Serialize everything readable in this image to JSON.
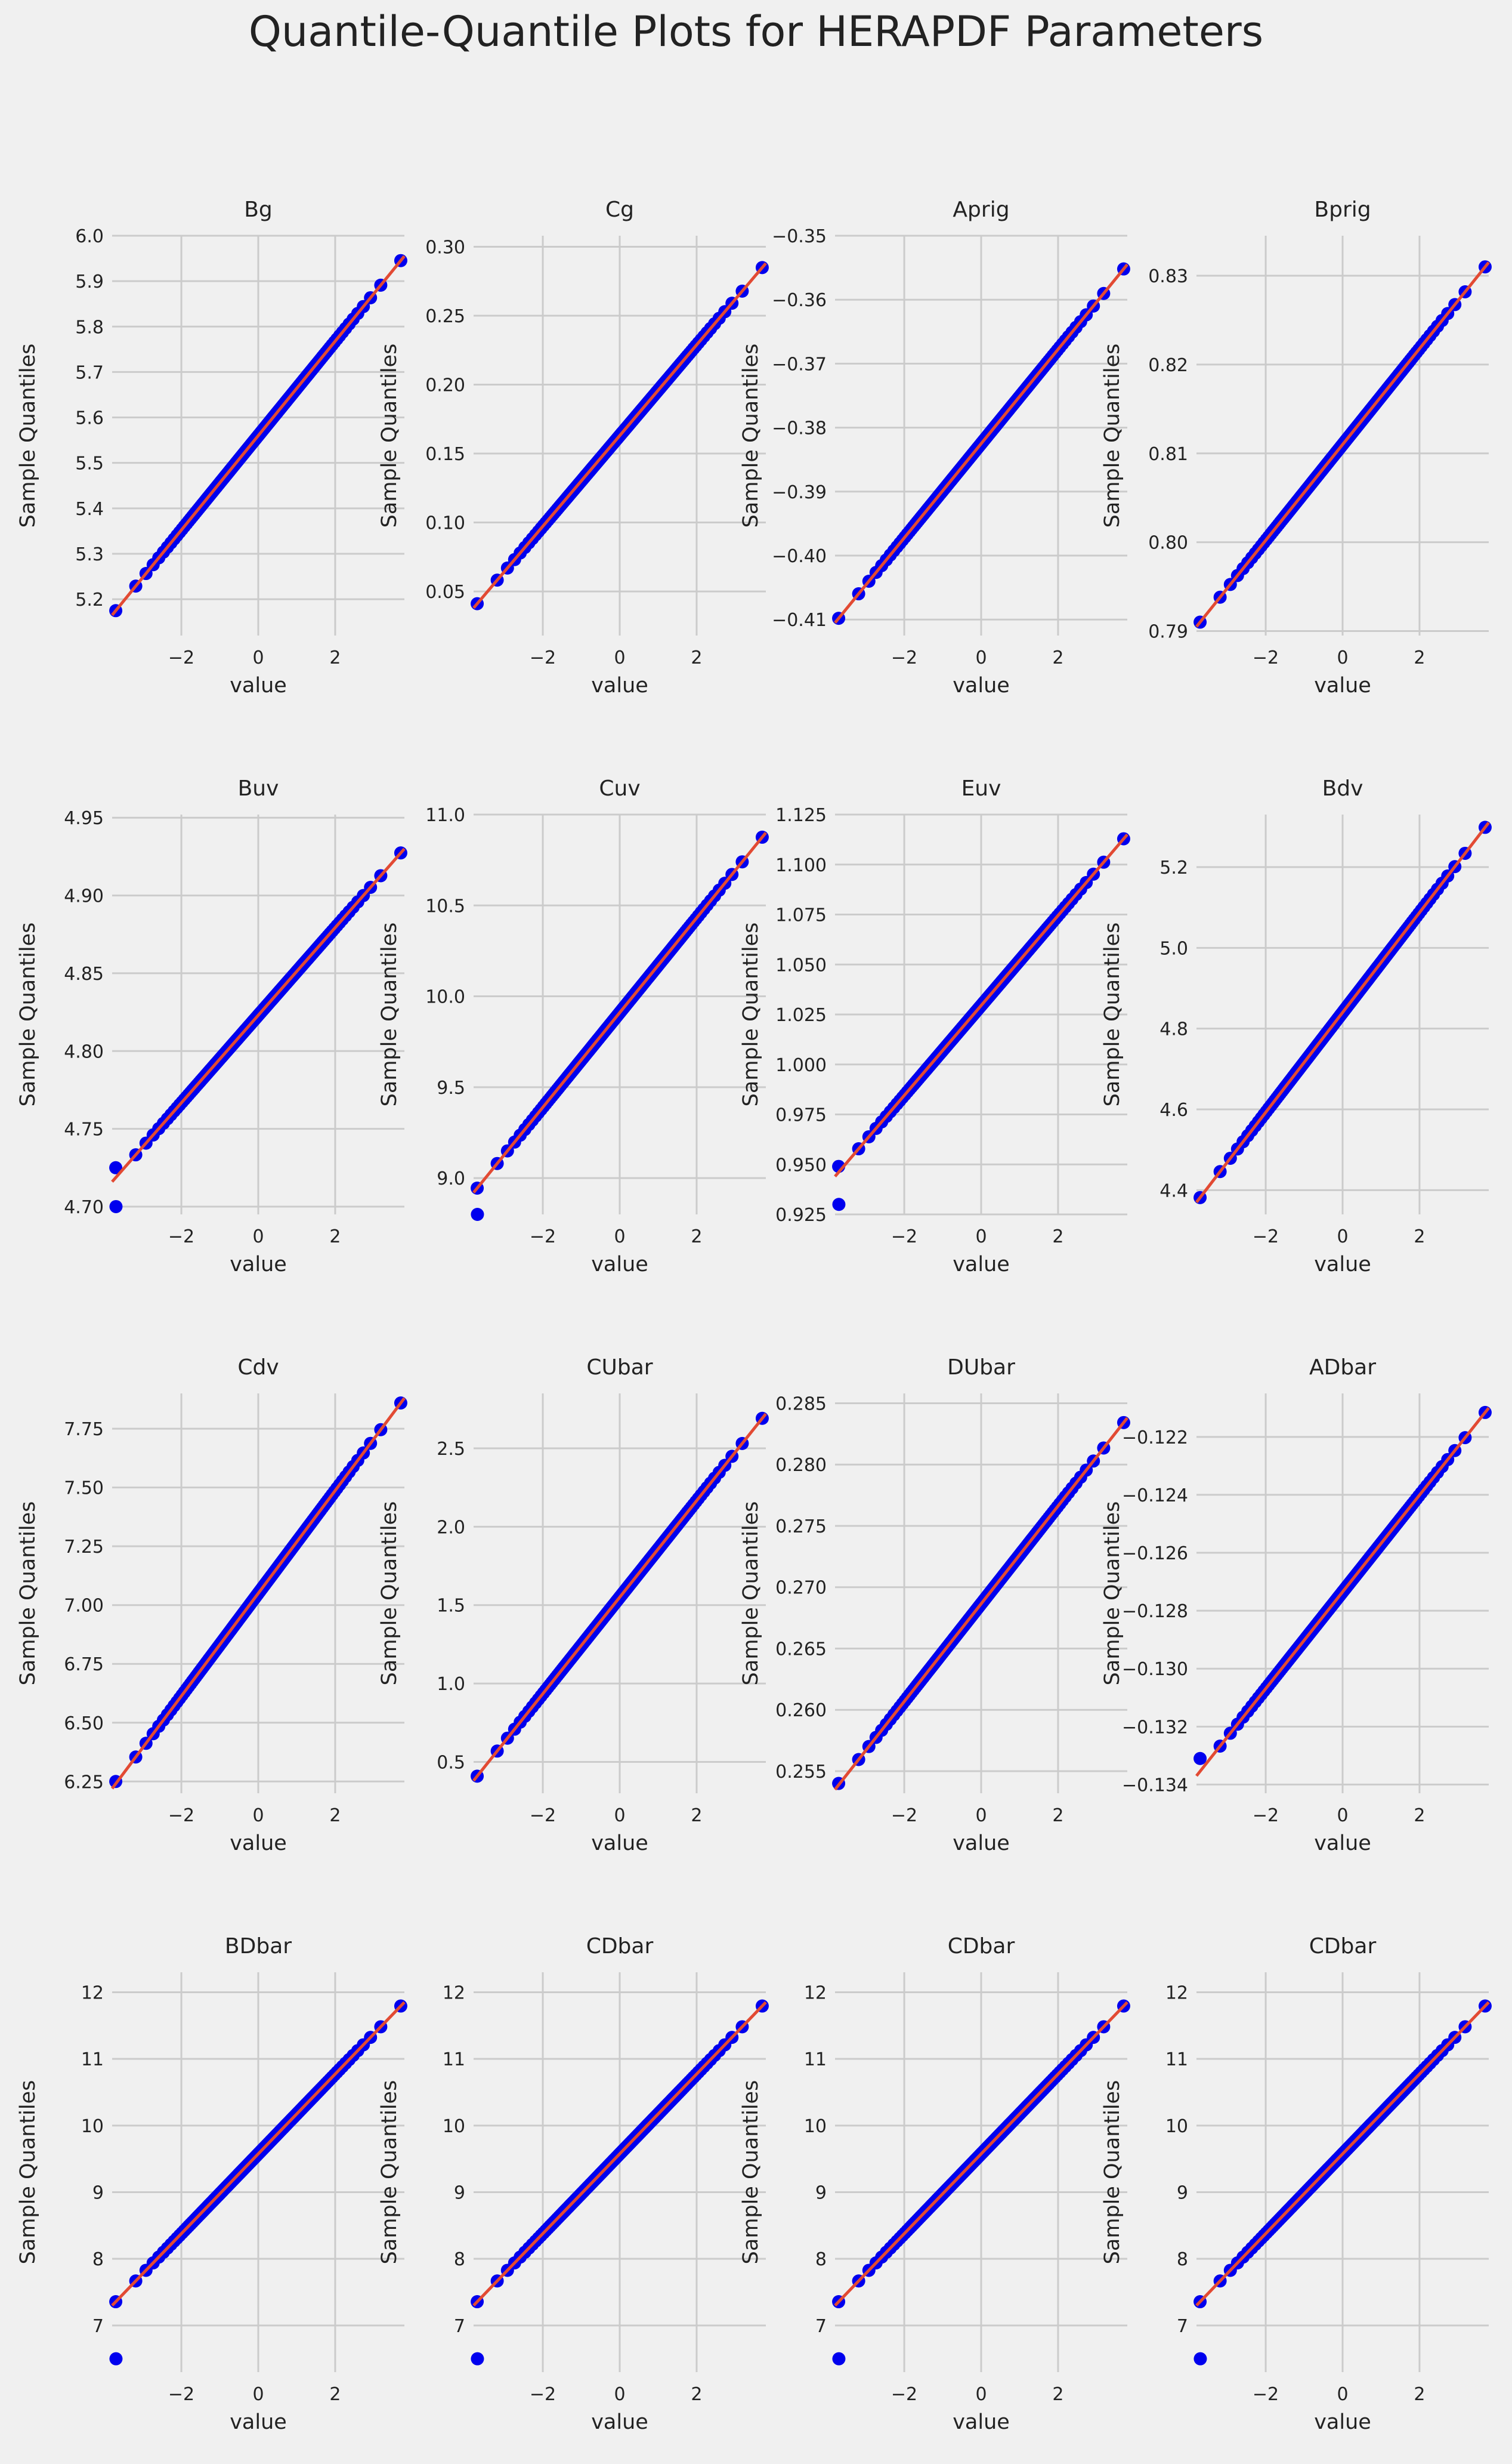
{
  "title": "Quantile-Quantile Plots for HERAPDF Parameters",
  "style": {
    "background": "#f0f0f0",
    "grid_color": "#cbcbcb",
    "point_color": "#0000ee",
    "line_color": "#e24a33",
    "text_color": "#222222"
  },
  "chart_data": [
    {
      "type": "scatter",
      "title": "Bg",
      "xlabel": "value",
      "ylabel": "Sample Quantiles",
      "xlim": [
        -3.8,
        3.8
      ],
      "ylim": [
        5.12,
        6.0
      ],
      "xticks": [
        -2,
        0,
        2
      ],
      "xtick_labels": [
        "−2",
        "0",
        "2"
      ],
      "yticks": [
        5.2,
        5.3,
        5.4,
        5.5,
        5.6,
        5.7,
        5.8,
        5.9,
        6.0
      ],
      "ytick_labels": [
        "5.2",
        "5.3",
        "5.4",
        "5.5",
        "5.6",
        "5.7",
        "5.8",
        "5.9",
        "6.0"
      ],
      "fit_line": {
        "x": [
          -3.8,
          3.8
        ],
        "y": [
          5.165,
          5.955
        ]
      },
      "points": {
        "q_min": 5.155,
        "q_max": 5.95,
        "lo_outlier": null,
        "hi_outlier": null
      }
    },
    {
      "type": "scatter",
      "title": "Cg",
      "xlabel": "value",
      "ylabel": "Sample Quantiles",
      "xlim": [
        -3.8,
        3.8
      ],
      "ylim": [
        0.018,
        0.308
      ],
      "xticks": [
        -2,
        0,
        2
      ],
      "xtick_labels": [
        "−2",
        "0",
        "2"
      ],
      "yticks": [
        0.05,
        0.1,
        0.15,
        0.2,
        0.25,
        0.3
      ],
      "ytick_labels": [
        "0.05",
        "0.10",
        "0.15",
        "0.20",
        "0.25",
        "0.30"
      ],
      "fit_line": {
        "x": [
          -3.8,
          3.8
        ],
        "y": [
          0.038,
          0.288
        ]
      },
      "points": {
        "q_min": 0.024,
        "q_max": 0.297,
        "lo_outlier": null,
        "hi_outlier": null
      }
    },
    {
      "type": "scatter",
      "title": "Aprig",
      "xlabel": "value",
      "ylabel": "Sample Quantiles",
      "xlim": [
        -3.8,
        3.8
      ],
      "ylim": [
        -0.4125,
        -0.35
      ],
      "xticks": [
        -2,
        0,
        2
      ],
      "xtick_labels": [
        "−2",
        "0",
        "2"
      ],
      "yticks": [
        -0.41,
        -0.4,
        -0.39,
        -0.38,
        -0.37,
        -0.36,
        -0.35
      ],
      "ytick_labels": [
        "−0.41",
        "−0.40",
        "−0.39",
        "−0.38",
        "−0.37",
        "−0.36",
        "−0.35"
      ],
      "fit_line": {
        "x": [
          -3.8,
          3.8
        ],
        "y": [
          -0.4105,
          -0.3545
        ]
      },
      "points": {
        "q_min": -0.4115,
        "q_max": -0.3525,
        "lo_outlier": null,
        "hi_outlier": null
      }
    },
    {
      "type": "scatter",
      "title": "Bprig",
      "xlabel": "value",
      "ylabel": "Sample Quantiles",
      "xlim": [
        -3.8,
        3.8
      ],
      "ylim": [
        0.7895,
        0.8345
      ],
      "xticks": [
        -2,
        0,
        2
      ],
      "xtick_labels": [
        "−2",
        "0",
        "2"
      ],
      "yticks": [
        0.79,
        0.8,
        0.81,
        0.82,
        0.83
      ],
      "ytick_labels": [
        "0.79",
        "0.80",
        "0.81",
        "0.82",
        "0.83"
      ],
      "fit_line": {
        "x": [
          -3.8,
          3.8
        ],
        "y": [
          0.7905,
          0.8315
        ]
      },
      "points": {
        "q_min": 0.7905,
        "q_max": 0.8318,
        "lo_outlier": null,
        "hi_outlier": null
      }
    },
    {
      "type": "scatter",
      "title": "Buv",
      "xlabel": "value",
      "ylabel": "Sample Quantiles",
      "xlim": [
        -3.8,
        3.8
      ],
      "ylim": [
        4.695,
        4.952
      ],
      "xticks": [
        -2,
        0,
        2
      ],
      "xtick_labels": [
        "−2",
        "0",
        "2"
      ],
      "yticks": [
        4.7,
        4.75,
        4.8,
        4.85,
        4.9,
        4.95
      ],
      "ytick_labels": [
        "4.70",
        "4.75",
        "4.80",
        "4.85",
        "4.90",
        "4.95"
      ],
      "fit_line": {
        "x": [
          -3.8,
          3.8
        ],
        "y": [
          4.716,
          4.93
        ]
      },
      "points": {
        "q_min": 4.725,
        "q_max": 4.938,
        "lo_outlier": 4.7,
        "hi_outlier": null
      }
    },
    {
      "type": "scatter",
      "title": "Cuv",
      "xlabel": "value",
      "ylabel": "Sample Quantiles",
      "xlim": [
        -3.8,
        3.8
      ],
      "ylim": [
        8.8,
        11.0
      ],
      "xticks": [
        -2,
        0,
        2
      ],
      "xtick_labels": [
        "−2",
        "0",
        "2"
      ],
      "yticks": [
        9.0,
        9.5,
        10.0,
        10.5,
        11.0
      ],
      "ytick_labels": [
        "9.0",
        "9.5",
        "10.0",
        "10.5",
        "11.0"
      ],
      "fit_line": {
        "x": [
          -3.8,
          3.8
        ],
        "y": [
          8.92,
          10.9
        ]
      },
      "points": {
        "q_min": 8.88,
        "q_max": 10.88,
        "lo_outlier": 8.8,
        "hi_outlier": null
      }
    },
    {
      "type": "scatter",
      "title": "Euv",
      "xlabel": "value",
      "ylabel": "Sample Quantiles",
      "xlim": [
        -3.8,
        3.8
      ],
      "ylim": [
        0.925,
        1.125
      ],
      "xticks": [
        -2,
        0,
        2
      ],
      "xtick_labels": [
        "−2",
        "0",
        "2"
      ],
      "yticks": [
        0.925,
        0.95,
        0.975,
        1.0,
        1.025,
        1.05,
        1.075,
        1.1,
        1.125
      ],
      "ytick_labels": [
        "0.925",
        "0.950",
        "0.975",
        "1.000",
        "1.025",
        "1.050",
        "1.075",
        "1.100",
        "1.125"
      ],
      "fit_line": {
        "x": [
          -3.8,
          3.8
        ],
        "y": [
          0.944,
          1.115
        ]
      },
      "points": {
        "q_min": 0.949,
        "q_max": 1.121,
        "lo_outlier": 0.93,
        "hi_outlier": null
      }
    },
    {
      "type": "scatter",
      "title": "Bdv",
      "xlabel": "value",
      "ylabel": "Sample Quantiles",
      "xlim": [
        -3.8,
        3.8
      ],
      "ylim": [
        4.34,
        5.33
      ],
      "xticks": [
        -2,
        0,
        2
      ],
      "xtick_labels": [
        "−2",
        "0",
        "2"
      ],
      "yticks": [
        4.4,
        4.6,
        4.8,
        5.0,
        5.2
      ],
      "ytick_labels": [
        "4.4",
        "4.6",
        "4.8",
        "5.0",
        "5.2"
      ],
      "fit_line": {
        "x": [
          -3.8,
          3.8
        ],
        "y": [
          4.37,
          5.31
        ]
      },
      "points": {
        "q_min": 4.36,
        "q_max": 5.31,
        "lo_outlier": null,
        "hi_outlier": null
      }
    },
    {
      "type": "scatter",
      "title": "Cdv",
      "xlabel": "value",
      "ylabel": "Sample Quantiles",
      "xlim": [
        -3.8,
        3.8
      ],
      "ylim": [
        6.2,
        7.9
      ],
      "xticks": [
        -2,
        0,
        2
      ],
      "xtick_labels": [
        "−2",
        "0",
        "2"
      ],
      "yticks": [
        6.25,
        6.5,
        6.75,
        7.0,
        7.25,
        7.5,
        7.75
      ],
      "ytick_labels": [
        "6.25",
        "6.50",
        "6.75",
        "7.00",
        "7.25",
        "7.50",
        "7.75"
      ],
      "fit_line": {
        "x": [
          -3.8,
          3.8
        ],
        "y": [
          6.22,
          7.88
        ]
      },
      "points": {
        "q_min": 6.25,
        "q_max": 7.9,
        "lo_outlier": null,
        "hi_outlier": null
      }
    },
    {
      "type": "scatter",
      "title": "CUbar",
      "xlabel": "value",
      "ylabel": "Sample Quantiles",
      "xlim": [
        -3.8,
        3.8
      ],
      "ylim": [
        0.3,
        2.85
      ],
      "xticks": [
        -2,
        0,
        2
      ],
      "xtick_labels": [
        "−2",
        "0",
        "2"
      ],
      "yticks": [
        0.5,
        1.0,
        1.5,
        2.0,
        2.5
      ],
      "ytick_labels": [
        "0.5",
        "1.0",
        "1.5",
        "2.0",
        "2.5"
      ],
      "fit_line": {
        "x": [
          -3.8,
          3.8
        ],
        "y": [
          0.38,
          2.72
        ]
      },
      "points": {
        "q_min": 0.35,
        "q_max": 2.7,
        "lo_outlier": null,
        "hi_outlier": null
      }
    },
    {
      "type": "scatter",
      "title": "DUbar",
      "xlabel": "value",
      "ylabel": "Sample Quantiles",
      "xlim": [
        -3.8,
        3.8
      ],
      "ylim": [
        0.2532,
        0.2858
      ],
      "xticks": [
        -2,
        0,
        2
      ],
      "xtick_labels": [
        "−2",
        "0",
        "2"
      ],
      "yticks": [
        0.255,
        0.26,
        0.265,
        0.27,
        0.275,
        0.28,
        0.285
      ],
      "ytick_labels": [
        "0.255",
        "0.260",
        "0.265",
        "0.270",
        "0.275",
        "0.280",
        "0.285"
      ],
      "fit_line": {
        "x": [
          -3.8,
          3.8
        ],
        "y": [
          0.2535,
          0.2838
        ]
      },
      "points": {
        "q_min": 0.254,
        "q_max": 0.2847,
        "lo_outlier": null,
        "hi_outlier": null
      }
    },
    {
      "type": "scatter",
      "title": "ADbar",
      "xlabel": "value",
      "ylabel": "Sample Quantiles",
      "xlim": [
        -3.8,
        3.8
      ],
      "ylim": [
        -0.1343,
        -0.1205
      ],
      "xticks": [
        -2,
        0,
        2
      ],
      "xtick_labels": [
        "−2",
        "0",
        "2"
      ],
      "yticks": [
        -0.134,
        -0.132,
        -0.13,
        -0.128,
        -0.126,
        -0.124,
        -0.122
      ],
      "ytick_labels": [
        "−0.134",
        "−0.132",
        "−0.130",
        "−0.128",
        "−0.126",
        "−0.124",
        "−0.122"
      ],
      "fit_line": {
        "x": [
          -3.8,
          3.8
        ],
        "y": [
          -0.1337,
          -0.121
        ]
      },
      "points": {
        "q_min": -0.1331,
        "q_max": -0.1208,
        "lo_outlier": null,
        "hi_outlier": null
      }
    },
    {
      "type": "scatter",
      "title": "BDbar",
      "xlabel": "value",
      "ylabel": "Sample Quantiles",
      "xlim": [
        -3.8,
        3.8
      ],
      "ylim": [
        6.3,
        12.3
      ],
      "xticks": [
        -2,
        0,
        2
      ],
      "xtick_labels": [
        "−2",
        "0",
        "2"
      ],
      "yticks": [
        7,
        8,
        9,
        10,
        11,
        12
      ],
      "ytick_labels": [
        "7",
        "8",
        "9",
        "10",
        "11",
        "12"
      ],
      "fit_line": {
        "x": [
          -3.8,
          3.8
        ],
        "y": [
          7.3,
          11.85
        ]
      },
      "points": {
        "q_min": 7.35,
        "q_max": 12.0,
        "lo_outlier": 6.5,
        "hi_outlier": null
      }
    },
    {
      "type": "scatter",
      "title": "CDbar",
      "xlabel": "value",
      "ylabel": "Sample Quantiles",
      "xlim": [
        -3.8,
        3.8
      ],
      "ylim": [
        6.3,
        12.3
      ],
      "xticks": [
        -2,
        0,
        2
      ],
      "xtick_labels": [
        "−2",
        "0",
        "2"
      ],
      "yticks": [
        7,
        8,
        9,
        10,
        11,
        12
      ],
      "ytick_labels": [
        "7",
        "8",
        "9",
        "10",
        "11",
        "12"
      ],
      "fit_line": {
        "x": [
          -3.8,
          3.8
        ],
        "y": [
          7.3,
          11.85
        ]
      },
      "points": {
        "q_min": 7.35,
        "q_max": 12.0,
        "lo_outlier": 6.5,
        "hi_outlier": null
      }
    },
    {
      "type": "scatter",
      "title": "CDbar",
      "xlabel": "value",
      "ylabel": "Sample Quantiles",
      "xlim": [
        -3.8,
        3.8
      ],
      "ylim": [
        6.3,
        12.3
      ],
      "xticks": [
        -2,
        0,
        2
      ],
      "xtick_labels": [
        "−2",
        "0",
        "2"
      ],
      "yticks": [
        7,
        8,
        9,
        10,
        11,
        12
      ],
      "ytick_labels": [
        "7",
        "8",
        "9",
        "10",
        "11",
        "12"
      ],
      "fit_line": {
        "x": [
          -3.8,
          3.8
        ],
        "y": [
          7.3,
          11.85
        ]
      },
      "points": {
        "q_min": 7.35,
        "q_max": 12.0,
        "lo_outlier": 6.5,
        "hi_outlier": null
      }
    },
    {
      "type": "scatter",
      "title": "CDbar",
      "xlabel": "value",
      "ylabel": "Sample Quantiles",
      "xlim": [
        -3.8,
        3.8
      ],
      "ylim": [
        6.3,
        12.3
      ],
      "xticks": [
        -2,
        0,
        2
      ],
      "xtick_labels": [
        "−2",
        "0",
        "2"
      ],
      "yticks": [
        7,
        8,
        9,
        10,
        11,
        12
      ],
      "ytick_labels": [
        "7",
        "8",
        "9",
        "10",
        "11",
        "12"
      ],
      "fit_line": {
        "x": [
          -3.8,
          3.8
        ],
        "y": [
          7.3,
          11.85
        ]
      },
      "points": {
        "q_min": 7.35,
        "q_max": 12.0,
        "lo_outlier": 6.5,
        "hi_outlier": null
      }
    }
  ]
}
